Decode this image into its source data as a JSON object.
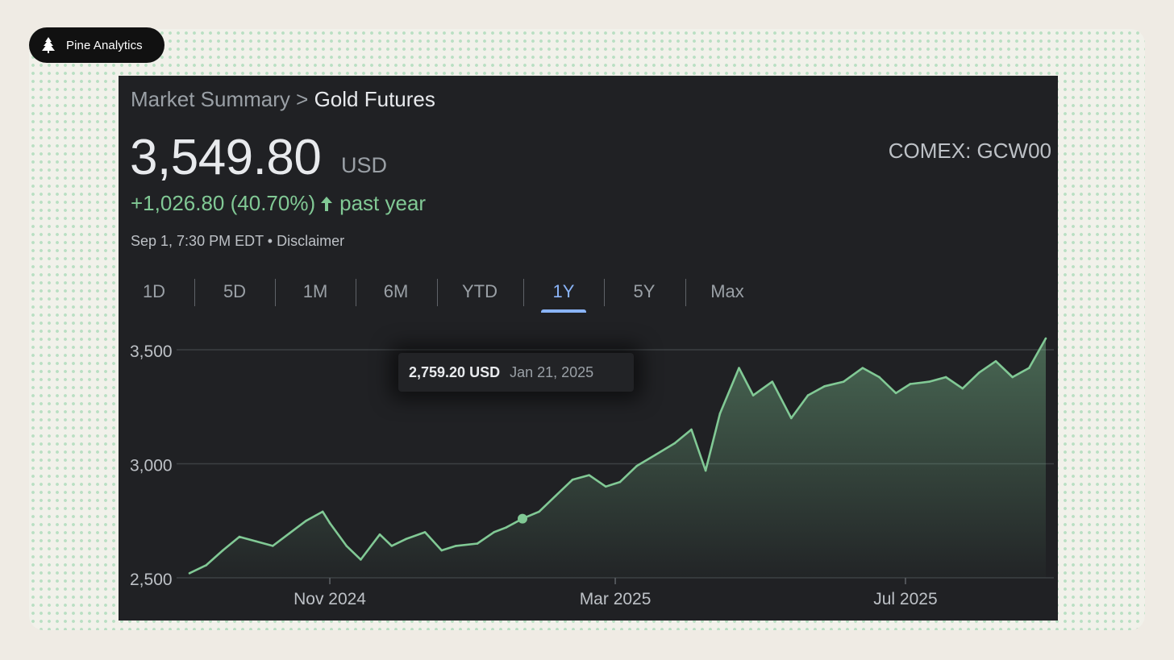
{
  "brand": {
    "name": "Pine Analytics",
    "icon": "pine-tree-icon"
  },
  "breadcrumb": {
    "parent": "Market Summary",
    "separator": ">",
    "current": "Gold Futures"
  },
  "quote": {
    "price": "3,549.80",
    "currency": "USD",
    "ticker": "COMEX: GCW00",
    "change": "+1,026.80 (40.70%)",
    "change_arrow_icon": "arrow-up-icon",
    "change_period": "past year",
    "timestamp": "Sep 1, 7:30 PM EDT",
    "disclaimer_sep": "•",
    "disclaimer": "Disclaimer"
  },
  "range_tabs": [
    {
      "label": "1D",
      "active": false
    },
    {
      "label": "5D",
      "active": false
    },
    {
      "label": "1M",
      "active": false
    },
    {
      "label": "6M",
      "active": false
    },
    {
      "label": "YTD",
      "active": false
    },
    {
      "label": "1Y",
      "active": true
    },
    {
      "label": "5Y",
      "active": false
    },
    {
      "label": "Max",
      "active": false
    }
  ],
  "tooltip": {
    "value": "2,759.20 USD",
    "date": "Jan 21, 2025"
  },
  "colors": {
    "line": "#81c995",
    "accent": "#8ab4f8",
    "background": "#202124",
    "grid": "#3c4043"
  },
  "chart_data": {
    "type": "area",
    "y_ticks": [
      "3,500",
      "3,000",
      "2,500"
    ],
    "y_tick_values": [
      3500,
      3000,
      2500
    ],
    "x_ticks": [
      "Nov 2024",
      "Mar 2025",
      "Jul 2025"
    ],
    "x_tick_dates": [
      "2024-11-01",
      "2025-03-01",
      "2025-07-01"
    ],
    "ylim": [
      2500,
      3500
    ],
    "grid": true,
    "highlight": {
      "date": "2025-01-21",
      "value": 2759.2
    },
    "series": [
      {
        "x": [
          "2024-09-03",
          "2024-09-10",
          "2024-09-17",
          "2024-09-24",
          "2024-10-01",
          "2024-10-08",
          "2024-10-15",
          "2024-10-22",
          "2024-10-29",
          "2024-11-01",
          "2024-11-08",
          "2024-11-14",
          "2024-11-22",
          "2024-11-27",
          "2024-12-03",
          "2024-12-11",
          "2024-12-18",
          "2024-12-24",
          "2025-01-02",
          "2025-01-09",
          "2025-01-14",
          "2025-01-21",
          "2025-01-28",
          "2025-02-04",
          "2025-02-11",
          "2025-02-18",
          "2025-02-25",
          "2025-03-03",
          "2025-03-10",
          "2025-03-18",
          "2025-03-26",
          "2025-04-02",
          "2025-04-08",
          "2025-04-14",
          "2025-04-22",
          "2025-04-28",
          "2025-05-06",
          "2025-05-14",
          "2025-05-21",
          "2025-05-28",
          "2025-06-05",
          "2025-06-13",
          "2025-06-20",
          "2025-06-27",
          "2025-07-03",
          "2025-07-11",
          "2025-07-18",
          "2025-07-25",
          "2025-08-01",
          "2025-08-08",
          "2025-08-15",
          "2025-08-22",
          "2025-08-29"
        ],
        "values": [
          2520,
          2555,
          2620,
          2680,
          2660,
          2640,
          2695,
          2750,
          2790,
          2740,
          2640,
          2580,
          2690,
          2640,
          2670,
          2700,
          2620,
          2640,
          2650,
          2700,
          2720,
          2759.2,
          2790,
          2860,
          2930,
          2950,
          2900,
          2920,
          2990,
          3040,
          3090,
          3150,
          2970,
          3220,
          3420,
          3300,
          3360,
          3200,
          3300,
          3340,
          3360,
          3420,
          3380,
          3310,
          3350,
          3360,
          3380,
          3330,
          3400,
          3450,
          3380,
          3420,
          3549.8
        ]
      }
    ]
  }
}
